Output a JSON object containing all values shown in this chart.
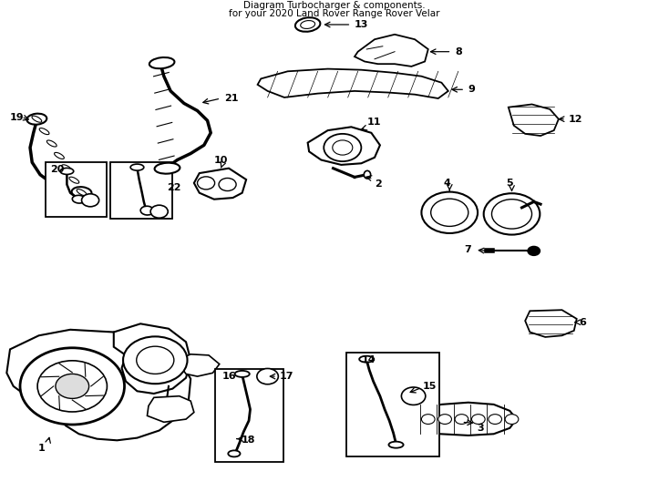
{
  "title1": "Diagram Turbocharger & components.",
  "title2": "for your 2020 Land Rover Range Rover Velar",
  "bg_color": "#ffffff",
  "line_color": "#000000",
  "fig_width": 7.34,
  "fig_height": 5.4,
  "dpi": 100
}
